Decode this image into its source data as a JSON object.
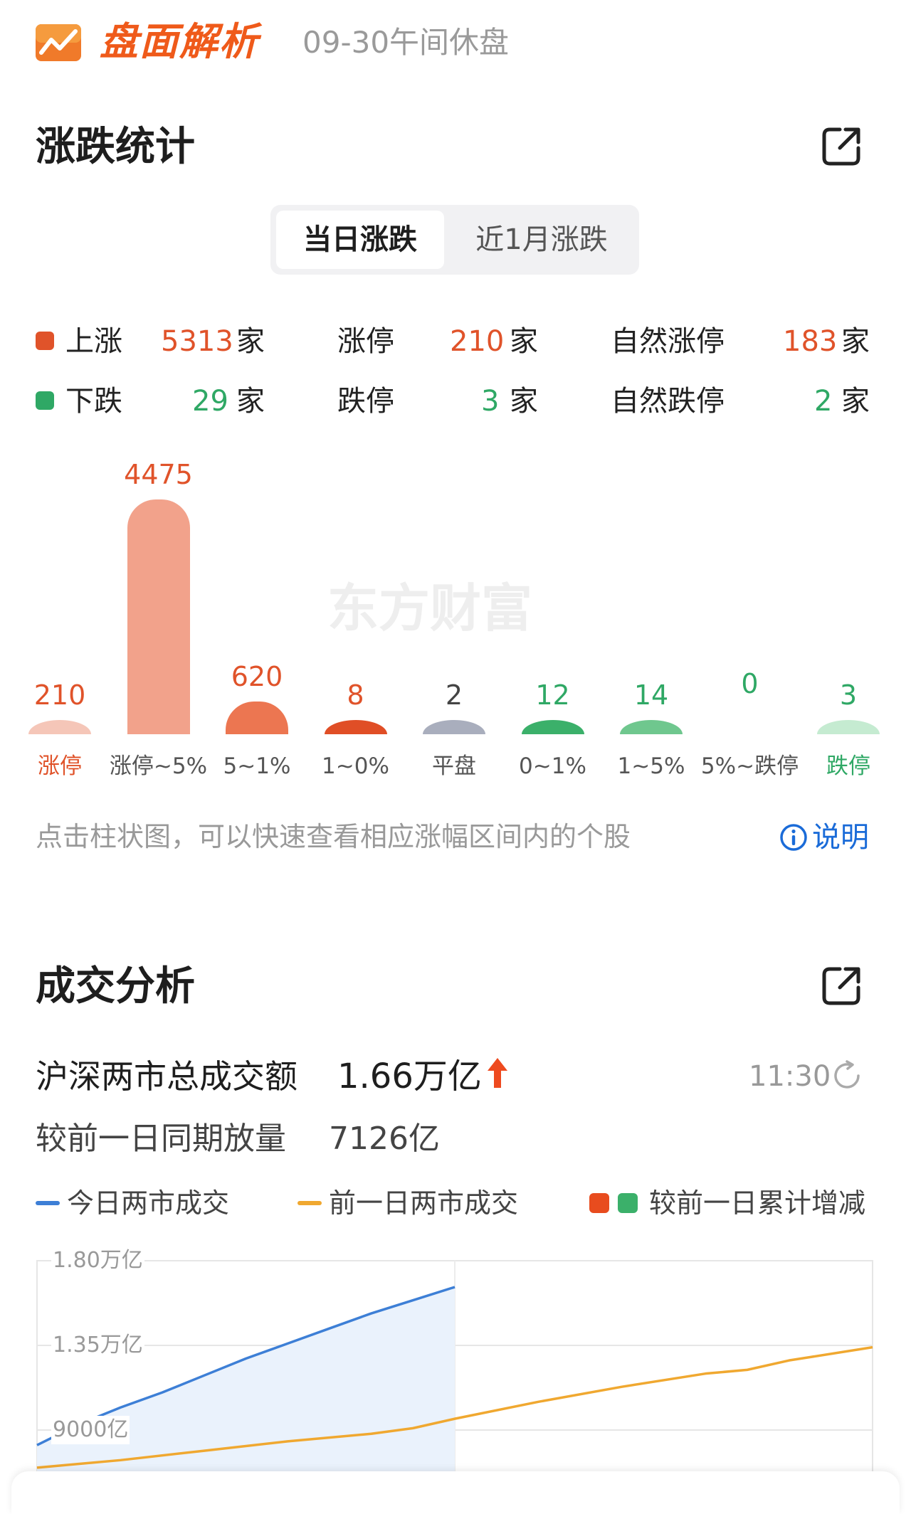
{
  "header": {
    "title": "盘面解析",
    "subtitle": "09-30午间休盘",
    "logo_icon": "trend-chart-icon"
  },
  "rise_fall": {
    "title": "涨跌统计",
    "share_icon": "share-icon",
    "tabs": [
      {
        "label": "当日涨跌",
        "active": true
      },
      {
        "label": "近1月涨跌",
        "active": false
      }
    ],
    "up": {
      "label": "上涨",
      "count": "5313",
      "unit": "家",
      "limit_label": "涨停",
      "limit_count": "210",
      "natural_label": "自然涨停",
      "natural_count": "183"
    },
    "down": {
      "label": "下跌",
      "count": "29",
      "unit": "家",
      "limit_label": "跌停",
      "limit_count": "3",
      "natural_label": "自然跌停",
      "natural_count": "2"
    },
    "hint": "点击柱状图，可以快速查看相应涨幅区间内的个股",
    "explain_label": "说明",
    "explain_icon": "info-icon",
    "watermark": "东方财富",
    "colors": {
      "up": "#e0532a",
      "down": "#2fa865",
      "flat": "#a9aebd"
    }
  },
  "chart_data": [
    {
      "type": "bar",
      "categories": [
        "涨停",
        "涨停~5%",
        "5~1%",
        "1~0%",
        "平盘",
        "0~1%",
        "1~5%",
        "5%~跌停",
        "跌停"
      ],
      "values": [
        210,
        4475,
        620,
        8,
        2,
        12,
        14,
        0,
        3
      ],
      "value_labels": [
        "210",
        "4475",
        "620",
        "8",
        "2",
        "12",
        "14",
        "0",
        "3"
      ],
      "colors": [
        "#f5c6b8",
        "#f2a28b",
        "#ec7651",
        "#e04e26",
        "#a9aebd",
        "#3bb06a",
        "#6fc78e",
        "#9fdbb3",
        "#c5ebd1"
      ],
      "label_colors": [
        "#e0532a",
        "#e0532a",
        "#e0532a",
        "#e0532a",
        "#444444",
        "#2fa865",
        "#2fa865",
        "#2fa865",
        "#2fa865"
      ]
    },
    {
      "type": "line",
      "y_ticks": [
        "1.80万亿",
        "1.35万亿",
        "9000亿"
      ],
      "ylim_data_units": [
        9000,
        18000
      ],
      "series": [
        {
          "name": "今日两市成交",
          "color": "#3d7fd6",
          "x": [
            0,
            0.05,
            0.1,
            0.15,
            0.2,
            0.25,
            0.3,
            0.35,
            0.4,
            0.45,
            0.5
          ],
          "values": [
            8200,
            9300,
            10200,
            11000,
            11900,
            12800,
            13600,
            14400,
            15200,
            15900,
            16600
          ]
        },
        {
          "name": "前一日两市成交",
          "color": "#f0a830",
          "x": [
            0,
            0.1,
            0.2,
            0.3,
            0.4,
            0.45,
            0.5,
            0.6,
            0.7,
            0.8,
            0.85,
            0.9,
            1.0
          ],
          "values": [
            7000,
            7400,
            7900,
            8400,
            8800,
            9100,
            9600,
            10500,
            11300,
            12000,
            12200,
            12700,
            13400
          ]
        }
      ],
      "extra_legend": "较前一日累计增减"
    }
  ],
  "trade": {
    "title": "成交分析",
    "share_icon": "share-icon",
    "total_label": "沪深两市总成交额",
    "total_value": "1.66万亿",
    "trend_icon": "arrow-up-icon",
    "time": "11:30",
    "refresh_icon": "refresh-icon",
    "compare_label": "较前一日同期放量",
    "compare_value": "7126亿"
  }
}
